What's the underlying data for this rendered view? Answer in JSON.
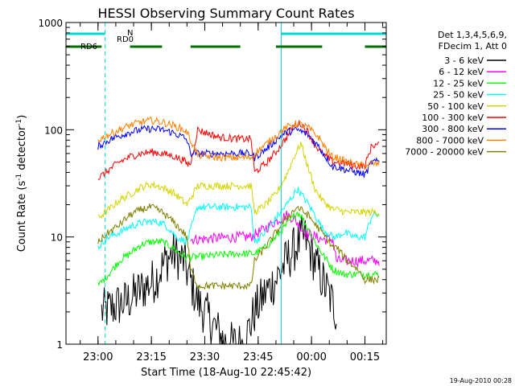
{
  "chart_data": {
    "type": "line",
    "title": "HESSI Observing Summary Count Rates",
    "xlabel": "Start Time (18-Aug-10 22:45:42)",
    "ylabel": "Count Rate (s",
    "ylabel_sup1": "-1",
    "ylabel_mid": " detector",
    "ylabel_sup2": "-1",
    "ylabel_end": ")",
    "y_scale": "log",
    "ylim": [
      1,
      1000
    ],
    "y_ticks": [
      {
        "label": "1",
        "value": 1
      },
      {
        "label": "10",
        "value": 10
      },
      {
        "label": "100",
        "value": 100
      },
      {
        "label": "1000",
        "value": 1000
      }
    ],
    "xlim_minutes": [
      -9,
      81
    ],
    "x_ticks": [
      {
        "label": "23:00",
        "minutes": 0
      },
      {
        "label": "23:15",
        "minutes": 15
      },
      {
        "label": "23:30",
        "minutes": 30
      },
      {
        "label": "23:45",
        "minutes": 45
      },
      {
        "label": "00:00",
        "minutes": 60
      },
      {
        "label": "00:15",
        "minutes": 75
      }
    ],
    "legend_header": [
      "Det 1,3,4,5,6,9,",
      "FDecim 1, Att 0"
    ],
    "series": [
      {
        "name": "3 - 6 keV",
        "color": "#000000",
        "x": [
          1,
          8,
          12,
          16,
          19,
          21,
          24,
          28,
          36,
          41,
          44,
          47,
          50,
          53,
          56,
          58,
          60,
          63,
          67
        ],
        "y": [
          2,
          2.5,
          3.2,
          4,
          6,
          7,
          6,
          2.5,
          1,
          1,
          2,
          3,
          4,
          6,
          8.5,
          10,
          7,
          4,
          2
        ]
      },
      {
        "name": "6 - 12 keV",
        "color": "#ff00ff",
        "x": [
          26,
          28,
          34,
          40,
          43,
          44,
          47,
          50,
          53,
          55,
          58,
          61,
          63,
          66,
          67,
          70,
          73,
          75,
          77,
          79
        ],
        "y": [
          9.5,
          9.5,
          9.8,
          10,
          10,
          10.5,
          12,
          14,
          16,
          15,
          11,
          10,
          9.5,
          9.5,
          6,
          6,
          6,
          6,
          6,
          6
        ]
      },
      {
        "name": "12 - 25 keV",
        "color": "#00ff00",
        "x": [
          0,
          3,
          6,
          9,
          12,
          15,
          18,
          21,
          23,
          25,
          28,
          34,
          40,
          43,
          44,
          47,
          50,
          53,
          56,
          57,
          59,
          61,
          63,
          66,
          69,
          72,
          75,
          77,
          79
        ],
        "y": [
          3.5,
          4.5,
          6,
          7,
          8.5,
          9,
          9,
          8,
          7,
          6.5,
          6.5,
          6.8,
          7,
          7,
          7,
          8,
          10,
          13,
          17,
          16,
          12,
          9,
          7,
          5,
          4.5,
          4.5,
          4.5,
          4.5,
          4.5
        ]
      },
      {
        "name": "25 - 50 keV",
        "color": "#00ffff",
        "x": [
          0,
          3,
          6,
          9,
          12,
          15,
          18,
          20,
          22,
          25,
          28,
          34,
          40,
          43,
          44,
          47,
          50,
          53,
          56,
          58,
          61,
          63,
          66,
          67,
          69,
          72,
          75,
          77,
          79
        ],
        "y": [
          8,
          10,
          11,
          12.5,
          13.5,
          14,
          13.5,
          12,
          10,
          9,
          19,
          19,
          19,
          19,
          9,
          11,
          15,
          20,
          28,
          23,
          16,
          12,
          10,
          10,
          11,
          10,
          10,
          16,
          16
        ]
      },
      {
        "name": "50 - 100 keV",
        "color": "#d4d400",
        "x": [
          0,
          3,
          6,
          9,
          12,
          15,
          18,
          21,
          23,
          25,
          28,
          34,
          40,
          43,
          44,
          47,
          50,
          53,
          55,
          57,
          59,
          61,
          63,
          66,
          67,
          70,
          73,
          75,
          77,
          79
        ],
        "y": [
          15,
          18,
          22,
          25,
          29,
          31,
          29,
          26,
          23,
          20,
          30,
          30,
          30,
          30,
          17,
          20,
          25,
          38,
          55,
          75,
          45,
          28,
          22,
          18,
          18,
          17,
          17,
          17,
          17,
          17
        ]
      },
      {
        "name": "100 - 300 keV",
        "color": "#ff0000",
        "x": [
          0,
          3,
          6,
          9,
          12,
          15,
          18,
          21,
          24,
          25,
          26,
          28,
          34,
          40,
          43,
          44,
          47,
          50,
          53,
          55,
          57,
          59,
          61,
          63,
          66,
          67,
          70,
          73,
          75,
          77,
          79
        ],
        "y": [
          35,
          42,
          50,
          56,
          60,
          62,
          60,
          57,
          52,
          48,
          48,
          100,
          85,
          82,
          82,
          40,
          48,
          62,
          85,
          110,
          115,
          95,
          72,
          60,
          50,
          50,
          48,
          46,
          46,
          72,
          72
        ]
      },
      {
        "name": "300 - 800 keV",
        "color": "#0000ff",
        "x": [
          0,
          3,
          6,
          9,
          12,
          15,
          18,
          21,
          24,
          25,
          26,
          28,
          34,
          40,
          43,
          44,
          47,
          50,
          53,
          56,
          59,
          62,
          65,
          66,
          67,
          70,
          73,
          75,
          77,
          79
        ],
        "y": [
          70,
          80,
          88,
          95,
          100,
          102,
          100,
          94,
          85,
          80,
          60,
          60,
          60,
          60,
          60,
          55,
          65,
          80,
          95,
          100,
          90,
          70,
          50,
          45,
          45,
          42,
          40,
          38,
          50,
          50
        ]
      },
      {
        "name": "800 - 7000 keV",
        "color": "#ff8000",
        "x": [
          0,
          3,
          6,
          9,
          12,
          15,
          18,
          21,
          24,
          25,
          26,
          28,
          34,
          40,
          43,
          44,
          47,
          50,
          53,
          56,
          59,
          62,
          65,
          66,
          67,
          70,
          73,
          75,
          77,
          79
        ],
        "y": [
          80,
          90,
          100,
          110,
          118,
          122,
          118,
          110,
          100,
          95,
          80,
          58,
          55,
          55,
          55,
          60,
          72,
          88,
          105,
          115,
          105,
          85,
          60,
          55,
          55,
          50,
          47,
          46,
          48,
          48
        ]
      },
      {
        "name": "7000 - 20000 keV",
        "color": "#808000",
        "x": [
          0,
          3,
          6,
          9,
          12,
          15,
          18,
          21,
          24,
          25,
          26,
          28,
          34,
          40,
          43,
          44,
          47,
          50,
          53,
          56,
          59,
          62,
          65,
          66,
          67,
          70,
          73,
          75,
          77,
          79
        ],
        "y": [
          9,
          11,
          13,
          16,
          18,
          19,
          17,
          14,
          11,
          10,
          5,
          3.5,
          3.5,
          3.5,
          3.5,
          6,
          8,
          11,
          15,
          19,
          16,
          12,
          9,
          8,
          8,
          6,
          5,
          4,
          4,
          4
        ]
      }
    ],
    "segment_bars": [
      {
        "label": "RD0",
        "color": "#00d8d8",
        "segments": [
          [
            -9,
            2
          ],
          [
            51.5,
            81
          ]
        ]
      },
      {
        "label": "N",
        "color": "#00d8d8",
        "segments": []
      },
      {
        "label": "RD6",
        "color": "#007000",
        "segments": [
          [
            -9,
            1
          ],
          [
            9,
            18
          ],
          [
            26,
            40
          ],
          [
            50,
            63
          ],
          [
            75,
            81
          ]
        ]
      }
    ],
    "flag_bar_label": "N",
    "vertical_markers_minutes": [
      {
        "minutes": -9,
        "style": "solid"
      },
      {
        "minutes": 2,
        "style": "dashed"
      },
      {
        "minutes": 51.5,
        "style": "solid"
      },
      {
        "minutes": 81,
        "style": "dashed"
      }
    ],
    "footer_date": "19-Aug-2010 00:28"
  }
}
